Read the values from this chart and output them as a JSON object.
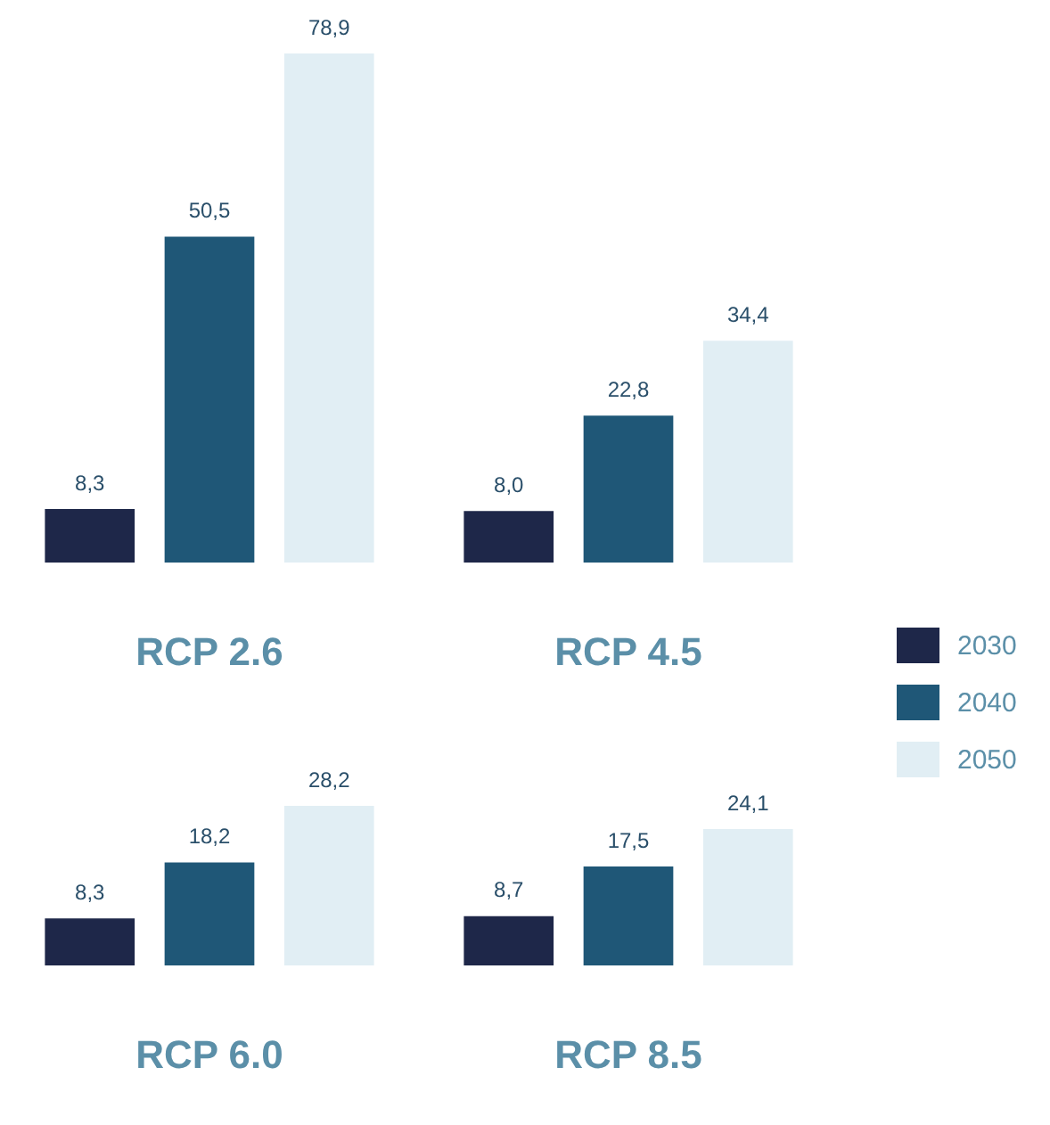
{
  "chart_data": [
    {
      "type": "bar",
      "categories": [
        "RCP 2.6",
        "RCP 4.5"
      ],
      "legend": "right",
      "series": [
        {
          "name": "2030",
          "color": "#1e2749",
          "values": [
            8.3,
            8.0
          ],
          "value_labels": [
            "8,3",
            "8,0"
          ]
        },
        {
          "name": "2040",
          "color": "#1f5777",
          "values": [
            50.5,
            22.8
          ],
          "value_labels": [
            "50,5",
            "22,8"
          ]
        },
        {
          "name": "2050",
          "color": "#e1eef4",
          "values": [
            78.9,
            34.4
          ],
          "value_labels": [
            "78,9",
            "34,4"
          ]
        }
      ]
    },
    {
      "type": "bar",
      "categories": [
        "RCP 6.0",
        "RCP 8.5"
      ],
      "legend": false,
      "series": [
        {
          "color": "#1e2749",
          "values": [
            8.3,
            8.7
          ],
          "value_labels": [
            "8,3",
            "8,7"
          ]
        },
        {
          "color": "#1f5777",
          "values": [
            18.2,
            17.5
          ],
          "value_labels": [
            "18,2",
            "17,5"
          ]
        },
        {
          "color": "#e1eef4",
          "values": [
            28.2,
            24.1
          ],
          "value_labels": [
            "28,2",
            "24,1"
          ]
        }
      ]
    }
  ]
}
